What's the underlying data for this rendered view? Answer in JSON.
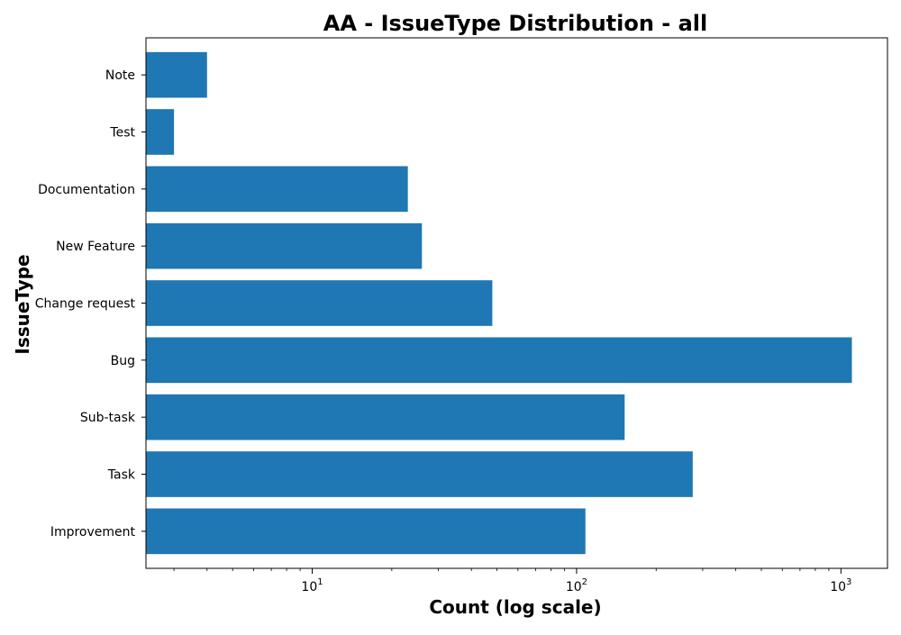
{
  "chart_data": {
    "type": "bar",
    "orientation": "horizontal",
    "title": "AA - IssueType Distribution - all",
    "xlabel": "Count (log scale)",
    "ylabel": "IssueType",
    "xscale": "log",
    "xlim": [
      2.35,
      1500
    ],
    "x_ticks": [
      {
        "base": "10",
        "exp": "1",
        "value": 10
      },
      {
        "base": "10",
        "exp": "2",
        "value": 100
      },
      {
        "base": "10",
        "exp": "3",
        "value": 1000
      }
    ],
    "categories": [
      "Improvement",
      "Task",
      "Sub-task",
      "Bug",
      "Change request",
      "New Feature",
      "Documentation",
      "Test",
      "Note"
    ],
    "values": [
      108,
      275,
      152,
      1100,
      48,
      26,
      23,
      3,
      4
    ],
    "color": "#1f77b4",
    "grid": false,
    "legend": "none"
  }
}
